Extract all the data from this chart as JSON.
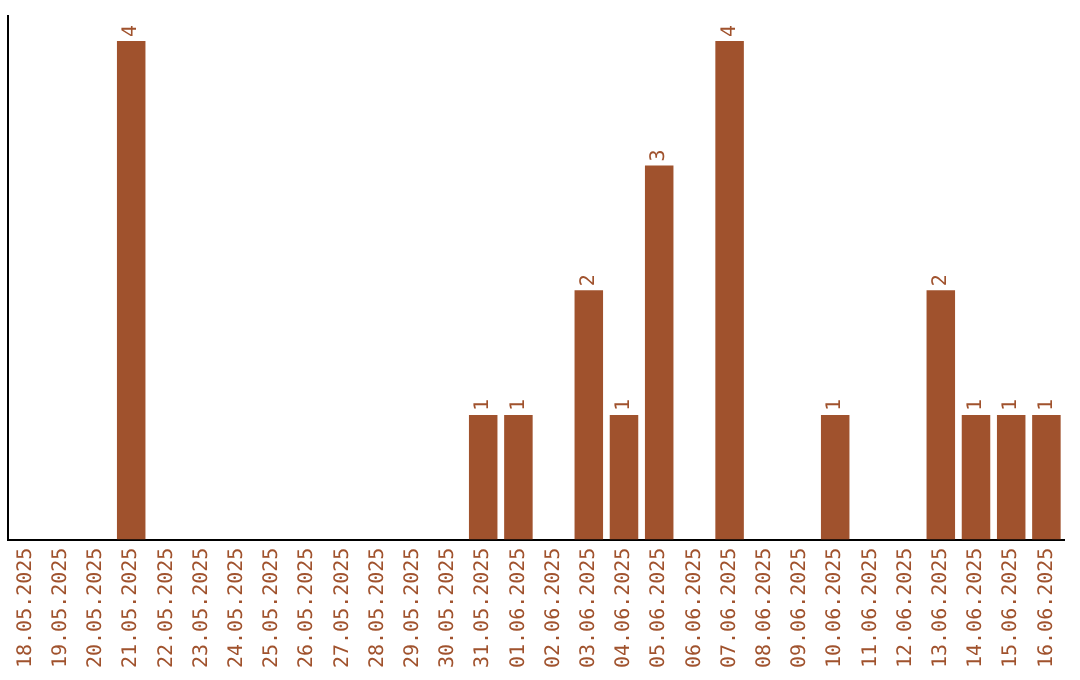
{
  "chart_data": {
    "type": "bar",
    "categories": [
      "18.05.2025",
      "19.05.2025",
      "20.05.2025",
      "21.05.2025",
      "22.05.2025",
      "23.05.2025",
      "24.05.2025",
      "25.05.2025",
      "26.05.2025",
      "27.05.2025",
      "28.05.2025",
      "29.05.2025",
      "30.05.2025",
      "31.05.2025",
      "01.06.2025",
      "02.06.2025",
      "03.06.2025",
      "04.06.2025",
      "05.06.2025",
      "06.06.2025",
      "07.06.2025",
      "08.06.2025",
      "09.06.2025",
      "10.06.2025",
      "11.06.2025",
      "12.06.2025",
      "13.06.2025",
      "14.06.2025",
      "15.06.2025",
      "16.06.2025"
    ],
    "values": [
      0,
      0,
      0,
      4,
      0,
      0,
      0,
      0,
      0,
      0,
      0,
      0,
      0,
      1,
      1,
      0,
      2,
      1,
      3,
      0,
      4,
      0,
      0,
      1,
      0,
      0,
      2,
      1,
      1,
      1
    ],
    "value_labels": [
      null,
      null,
      null,
      "4",
      null,
      null,
      null,
      null,
      null,
      null,
      null,
      null,
      null,
      "1",
      "1",
      null,
      "2",
      "1",
      "3",
      null,
      "4",
      null,
      null,
      "1",
      null,
      null,
      "2",
      "1",
      "1",
      "1"
    ],
    "color": "#a0522d",
    "ylim": [
      0,
      4.2
    ],
    "tick_labels": "x",
    "grid": false,
    "legend": false
  }
}
